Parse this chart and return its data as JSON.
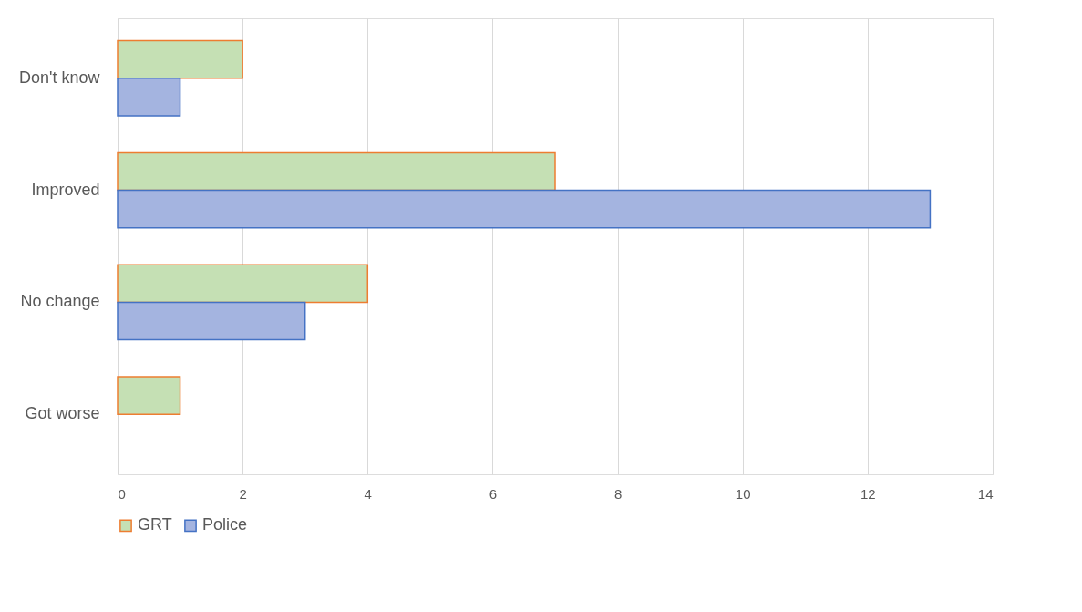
{
  "chart_data": {
    "type": "bar",
    "orientation": "horizontal",
    "categories": [
      "Don't know",
      "Improved",
      "No change",
      "Got worse"
    ],
    "series": [
      {
        "name": "GRT",
        "color": "#c5e0b4",
        "values": [
          2,
          7,
          4,
          1
        ]
      },
      {
        "name": "Police",
        "color": "#a4b4e0",
        "values": [
          1,
          13,
          3,
          null
        ]
      }
    ],
    "xlim": [
      0,
      14
    ],
    "xticks": [
      0,
      2,
      4,
      6,
      8,
      10,
      12,
      14
    ],
    "grid": "x",
    "legend": "bottom"
  }
}
